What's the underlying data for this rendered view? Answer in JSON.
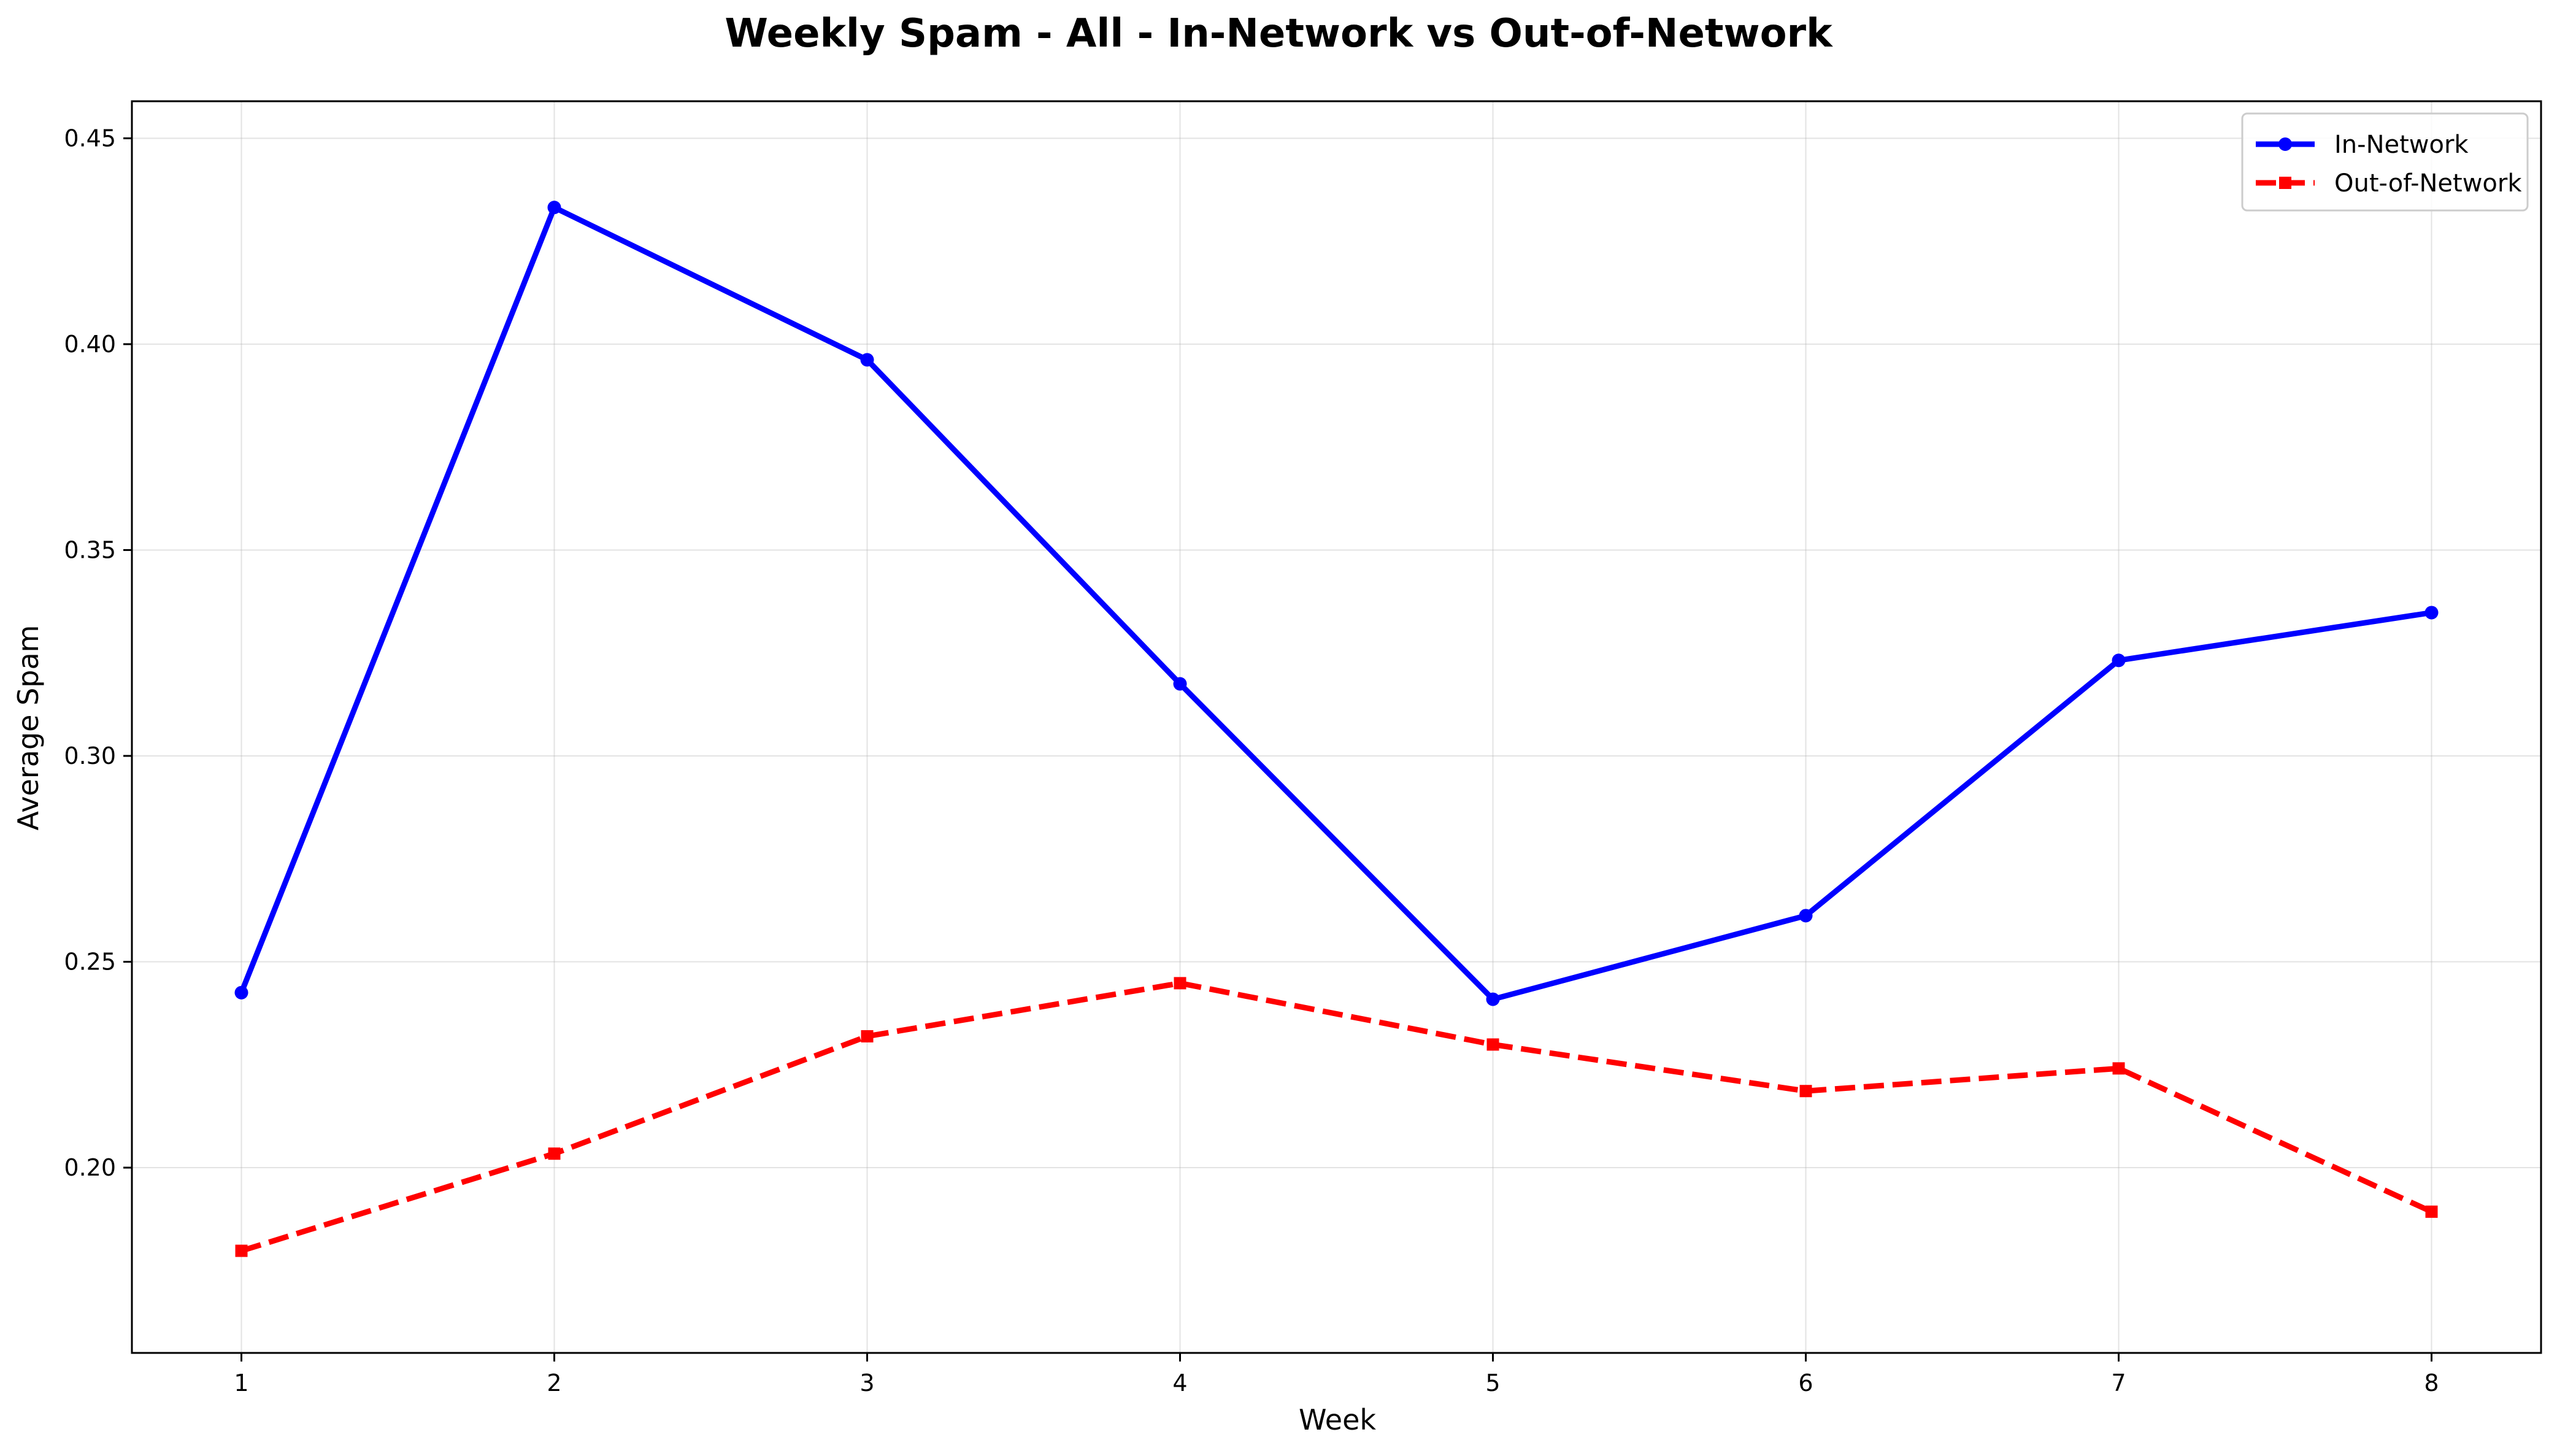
{
  "chart_data": {
    "type": "line",
    "title": "Weekly Spam - All - In-Network vs Out-of-Network",
    "xlabel": "Week",
    "ylabel": "Average Spam",
    "x": [
      1,
      2,
      3,
      4,
      5,
      6,
      7,
      8
    ],
    "xlim": [
      0.65,
      8.35
    ],
    "ylim": [
      0.155,
      0.459
    ],
    "x_ticks": [
      1,
      2,
      3,
      4,
      5,
      6,
      7,
      8
    ],
    "x_tick_labels": [
      "1",
      "2",
      "3",
      "4",
      "5",
      "6",
      "7",
      "8"
    ],
    "y_ticks": [
      0.2,
      0.25,
      0.3,
      0.35,
      0.4,
      0.45
    ],
    "y_tick_labels": [
      "0.20",
      "0.25",
      "0.30",
      "0.35",
      "0.40",
      "0.45"
    ],
    "grid": true,
    "legend_position": "top-right",
    "series": [
      {
        "name": "In-Network",
        "color": "#0000ff",
        "line_style": "solid",
        "marker": "circle",
        "values": [
          0.2425,
          0.4332,
          0.3962,
          0.3175,
          0.2409,
          0.2612,
          0.3232,
          0.3348
        ]
      },
      {
        "name": "Out-of-Network",
        "color": "#ff0000",
        "line_style": "dashed",
        "marker": "square",
        "values": [
          0.1798,
          0.2034,
          0.2319,
          0.2448,
          0.2299,
          0.2186,
          0.2241,
          0.1893
        ]
      }
    ]
  }
}
